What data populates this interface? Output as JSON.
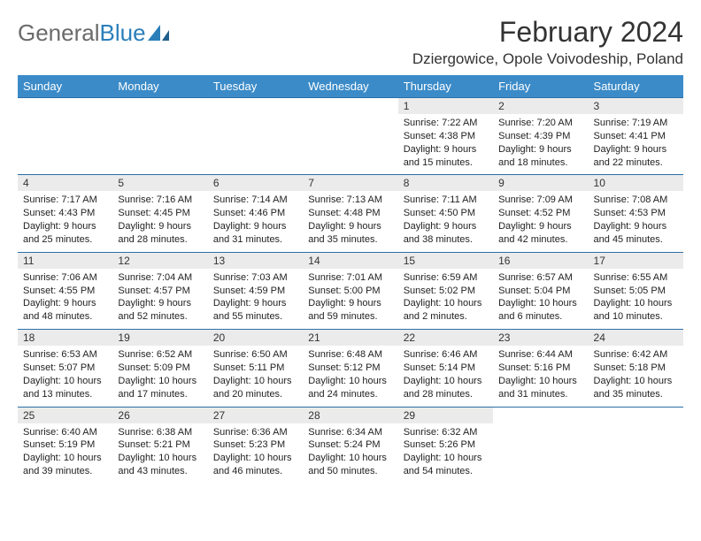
{
  "logo": {
    "text1": "General",
    "text2": "Blue"
  },
  "title": "February 2024",
  "location": "Dziergowice, Opole Voivodeship, Poland",
  "colors": {
    "header_bg": "#3b8bc8",
    "daynum_bg": "#ebebeb",
    "rule": "#2a6fa8",
    "logo_gray": "#6a6a6a",
    "logo_blue": "#2a7fba"
  },
  "day_headers": [
    "Sunday",
    "Monday",
    "Tuesday",
    "Wednesday",
    "Thursday",
    "Friday",
    "Saturday"
  ],
  "weeks": [
    {
      "nums": [
        "",
        "",
        "",
        "",
        "1",
        "2",
        "3"
      ],
      "cells": [
        null,
        null,
        null,
        null,
        {
          "sunrise": "7:22 AM",
          "sunset": "4:38 PM",
          "daylight": "9 hours and 15 minutes."
        },
        {
          "sunrise": "7:20 AM",
          "sunset": "4:39 PM",
          "daylight": "9 hours and 18 minutes."
        },
        {
          "sunrise": "7:19 AM",
          "sunset": "4:41 PM",
          "daylight": "9 hours and 22 minutes."
        }
      ]
    },
    {
      "nums": [
        "4",
        "5",
        "6",
        "7",
        "8",
        "9",
        "10"
      ],
      "cells": [
        {
          "sunrise": "7:17 AM",
          "sunset": "4:43 PM",
          "daylight": "9 hours and 25 minutes."
        },
        {
          "sunrise": "7:16 AM",
          "sunset": "4:45 PM",
          "daylight": "9 hours and 28 minutes."
        },
        {
          "sunrise": "7:14 AM",
          "sunset": "4:46 PM",
          "daylight": "9 hours and 31 minutes."
        },
        {
          "sunrise": "7:13 AM",
          "sunset": "4:48 PM",
          "daylight": "9 hours and 35 minutes."
        },
        {
          "sunrise": "7:11 AM",
          "sunset": "4:50 PM",
          "daylight": "9 hours and 38 minutes."
        },
        {
          "sunrise": "7:09 AM",
          "sunset": "4:52 PM",
          "daylight": "9 hours and 42 minutes."
        },
        {
          "sunrise": "7:08 AM",
          "sunset": "4:53 PM",
          "daylight": "9 hours and 45 minutes."
        }
      ]
    },
    {
      "nums": [
        "11",
        "12",
        "13",
        "14",
        "15",
        "16",
        "17"
      ],
      "cells": [
        {
          "sunrise": "7:06 AM",
          "sunset": "4:55 PM",
          "daylight": "9 hours and 48 minutes."
        },
        {
          "sunrise": "7:04 AM",
          "sunset": "4:57 PM",
          "daylight": "9 hours and 52 minutes."
        },
        {
          "sunrise": "7:03 AM",
          "sunset": "4:59 PM",
          "daylight": "9 hours and 55 minutes."
        },
        {
          "sunrise": "7:01 AM",
          "sunset": "5:00 PM",
          "daylight": "9 hours and 59 minutes."
        },
        {
          "sunrise": "6:59 AM",
          "sunset": "5:02 PM",
          "daylight": "10 hours and 2 minutes."
        },
        {
          "sunrise": "6:57 AM",
          "sunset": "5:04 PM",
          "daylight": "10 hours and 6 minutes."
        },
        {
          "sunrise": "6:55 AM",
          "sunset": "5:05 PM",
          "daylight": "10 hours and 10 minutes."
        }
      ]
    },
    {
      "nums": [
        "18",
        "19",
        "20",
        "21",
        "22",
        "23",
        "24"
      ],
      "cells": [
        {
          "sunrise": "6:53 AM",
          "sunset": "5:07 PM",
          "daylight": "10 hours and 13 minutes."
        },
        {
          "sunrise": "6:52 AM",
          "sunset": "5:09 PM",
          "daylight": "10 hours and 17 minutes."
        },
        {
          "sunrise": "6:50 AM",
          "sunset": "5:11 PM",
          "daylight": "10 hours and 20 minutes."
        },
        {
          "sunrise": "6:48 AM",
          "sunset": "5:12 PM",
          "daylight": "10 hours and 24 minutes."
        },
        {
          "sunrise": "6:46 AM",
          "sunset": "5:14 PM",
          "daylight": "10 hours and 28 minutes."
        },
        {
          "sunrise": "6:44 AM",
          "sunset": "5:16 PM",
          "daylight": "10 hours and 31 minutes."
        },
        {
          "sunrise": "6:42 AM",
          "sunset": "5:18 PM",
          "daylight": "10 hours and 35 minutes."
        }
      ]
    },
    {
      "nums": [
        "25",
        "26",
        "27",
        "28",
        "29",
        "",
        ""
      ],
      "cells": [
        {
          "sunrise": "6:40 AM",
          "sunset": "5:19 PM",
          "daylight": "10 hours and 39 minutes."
        },
        {
          "sunrise": "6:38 AM",
          "sunset": "5:21 PM",
          "daylight": "10 hours and 43 minutes."
        },
        {
          "sunrise": "6:36 AM",
          "sunset": "5:23 PM",
          "daylight": "10 hours and 46 minutes."
        },
        {
          "sunrise": "6:34 AM",
          "sunset": "5:24 PM",
          "daylight": "10 hours and 50 minutes."
        },
        {
          "sunrise": "6:32 AM",
          "sunset": "5:26 PM",
          "daylight": "10 hours and 54 minutes."
        },
        null,
        null
      ]
    }
  ],
  "labels": {
    "sunrise": "Sunrise: ",
    "sunset": "Sunset: ",
    "daylight": "Daylight: "
  }
}
